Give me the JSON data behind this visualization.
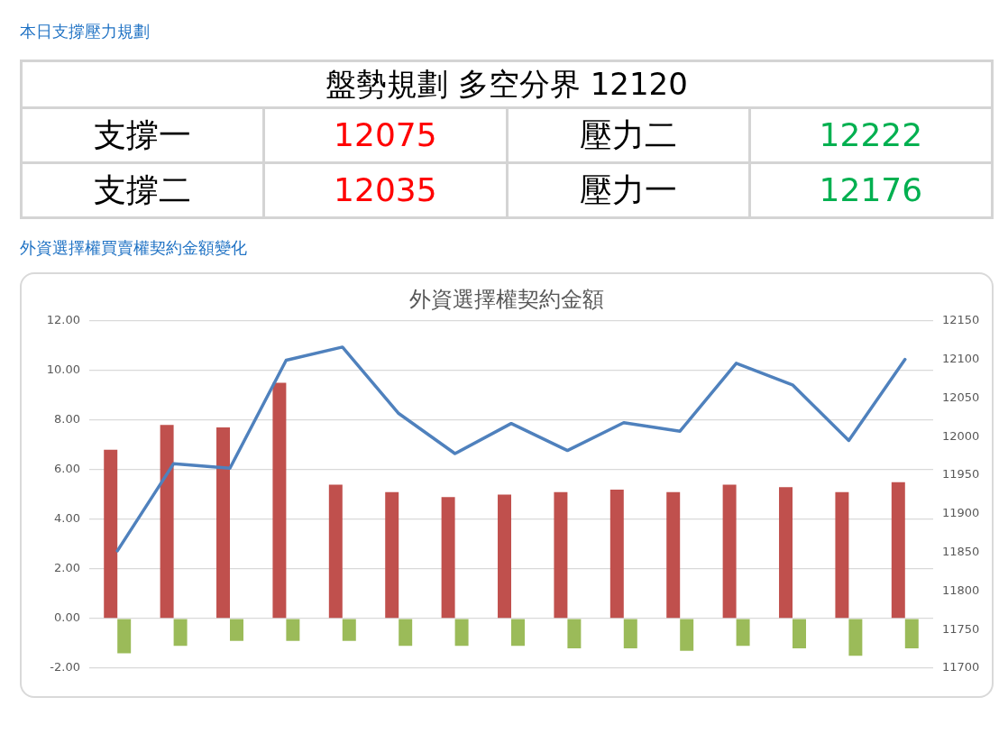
{
  "chart_data": [
    {
      "type": "other",
      "title": "本日支撐壓力規劃",
      "annotations": [
        "盤勢規劃 多空分界 12120"
      ],
      "categories": [
        "支撐一",
        "12075",
        "壓力二",
        "12222",
        "支撐二",
        "12035",
        "壓力一",
        "12176"
      ],
      "colors": [
        "#000000",
        "#ff0000",
        "#000000",
        "#00b050",
        "#000000",
        "#ff0000",
        "#000000",
        "#00b050"
      ]
    },
    {
      "type": "bar",
      "title": "外資選擇權買賣權契約金額變化",
      "subtitle": "外資選擇權契約金額",
      "categories": [
        null,
        null,
        null,
        null,
        null,
        null,
        null,
        null,
        null,
        null,
        null,
        null,
        null,
        null,
        null
      ],
      "series": [
        {
          "type": "bar",
          "color": "#c0504d",
          "values": [
            6.8,
            7.8,
            7.7,
            9.5,
            5.4,
            5.1,
            4.9,
            5.0,
            5.1,
            5.2,
            5.1,
            5.4,
            5.3,
            5.1,
            5.5
          ]
        },
        {
          "type": "bar",
          "color": "#9bbb59",
          "values": [
            -1.4,
            -1.1,
            -0.9,
            -0.9,
            -0.9,
            -1.1,
            -1.1,
            -1.1,
            -1.2,
            -1.2,
            -1.3,
            -1.1,
            -1.2,
            -1.5,
            -1.2
          ]
        },
        {
          "type": "line",
          "axis": "y2",
          "color": "#4f81bd",
          "values": [
            11852,
            11965,
            11959,
            12099,
            12116,
            12030,
            11978,
            12017,
            11982,
            12018,
            12007,
            12095,
            12067,
            11995,
            12100
          ]
        }
      ],
      "ylim": [
        -2,
        12
      ],
      "yticks": [
        {
          "value": -2,
          "label": "-2.00"
        },
        {
          "value": 0,
          "label": "0.00"
        },
        {
          "value": 2,
          "label": "2.00"
        },
        {
          "value": 4,
          "label": "4.00"
        },
        {
          "value": 6,
          "label": "6.00"
        },
        {
          "value": 8,
          "label": "8.00"
        },
        {
          "value": 10,
          "label": "10.00"
        },
        {
          "value": 12,
          "label": "12.00"
        }
      ],
      "y2lim": [
        11700,
        12150
      ],
      "y2ticks": [
        11700,
        11750,
        11800,
        11850,
        11900,
        11950,
        12000,
        12050,
        12100,
        12150
      ],
      "grid": "y",
      "marker": "none"
    }
  ]
}
